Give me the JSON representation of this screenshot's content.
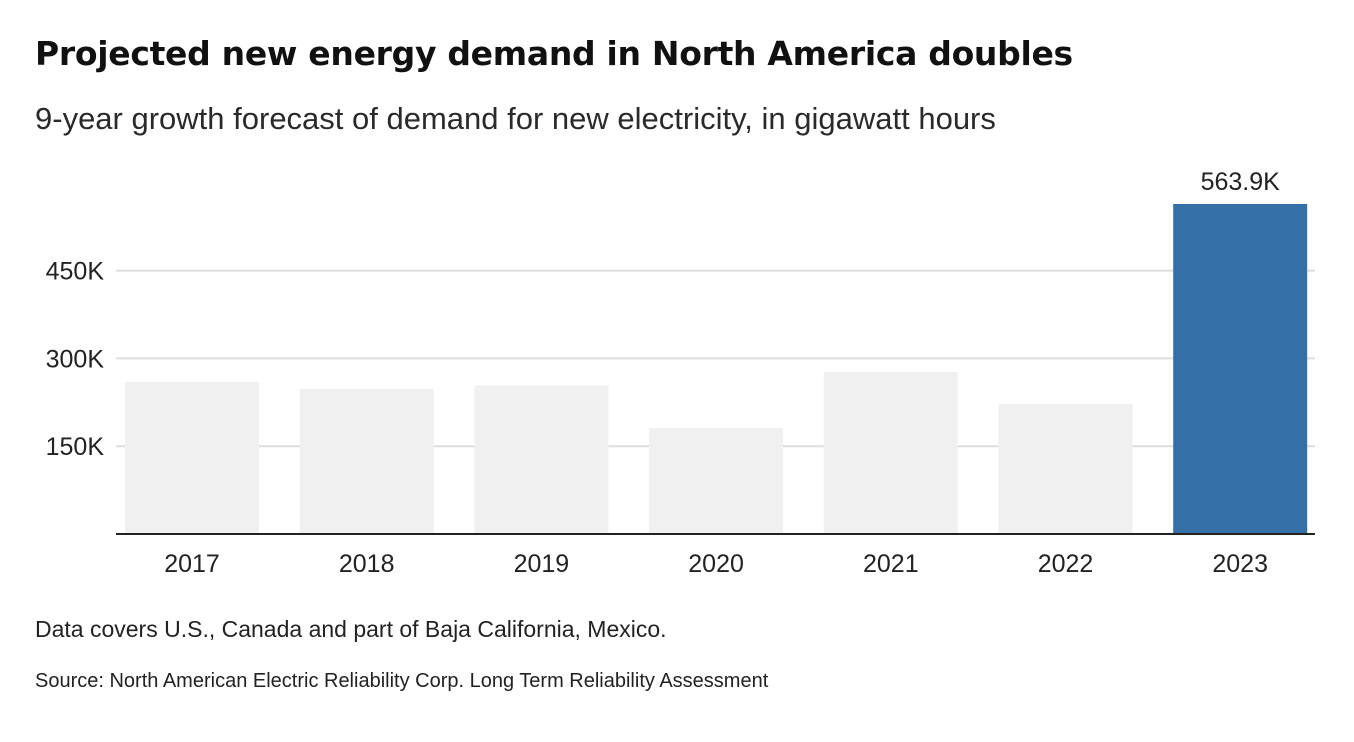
{
  "chart_data": {
    "type": "bar",
    "title": "Projected new energy demand in North America doubles",
    "subtitle": "9-year growth forecast of demand for new electricity, in gigawatt hours",
    "categories": [
      "2017",
      "2018",
      "2019",
      "2020",
      "2021",
      "2022",
      "2023"
    ],
    "values": [
      260000,
      248000,
      254000,
      181000,
      277000,
      222000,
      563900
    ],
    "highlight_index": 6,
    "highlight_label": "563.9K",
    "yticks": [
      150000,
      300000,
      450000
    ],
    "ytick_labels": [
      "150K",
      "300K",
      "450K"
    ],
    "ylim": [
      0,
      563900
    ],
    "xlabel": "",
    "ylabel": "",
    "grid": true,
    "colors": {
      "bar": "#f0f0f0",
      "highlight": "#3470a6",
      "grid": "#dddddd",
      "axis": "#222222"
    }
  },
  "footnote": "Data covers U.S., Canada and part of Baja California, Mexico.",
  "source": "Source: North American Electric Reliability Corp. Long Term Reliability Assessment"
}
